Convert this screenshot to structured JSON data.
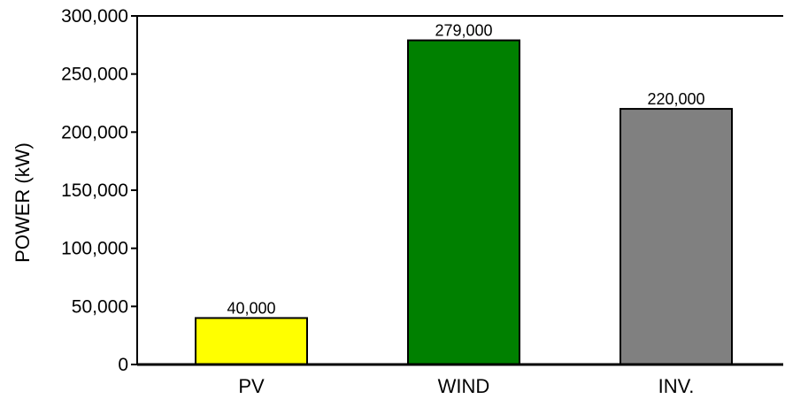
{
  "chart_data": {
    "type": "bar",
    "title": "",
    "xlabel": "",
    "ylabel": "POWER (kW)",
    "ylim": [
      0,
      300000
    ],
    "yticks": [
      0,
      50000,
      100000,
      150000,
      200000,
      250000,
      300000
    ],
    "ytick_labels": [
      "0",
      "50,000",
      "100,000",
      "150,000",
      "200,000",
      "250,000",
      "300,000"
    ],
    "categories": [
      "PV",
      "WIND",
      "INV."
    ],
    "values": [
      40000,
      279000,
      220000
    ],
    "value_labels": [
      "40,000",
      "279,000",
      "220,000"
    ],
    "colors": [
      "#ffff00",
      "#008000",
      "#808080"
    ],
    "grid": false,
    "legend": "none"
  }
}
